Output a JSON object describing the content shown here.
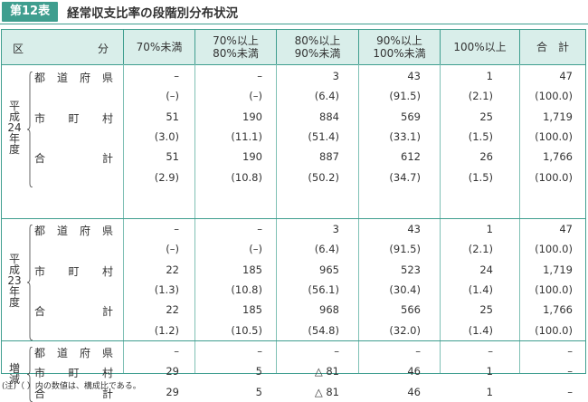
{
  "header": {
    "badge": "第12表",
    "title": "経常収支比率の段階別分布状況"
  },
  "columns": {
    "kubun_left": "区",
    "kubun_right": "分",
    "heads": [
      [
        "70%未満"
      ],
      [
        "70%以上",
        "80%未満"
      ],
      [
        "80%以上",
        "90%未満"
      ],
      [
        "90%以上",
        "100%未満"
      ],
      [
        "100%以上"
      ],
      [
        "合　計"
      ]
    ]
  },
  "groups": [
    {
      "label": [
        "平",
        "成",
        "24",
        "年",
        "度"
      ],
      "rows": [
        {
          "label": [
            "都",
            "道",
            "府",
            "県"
          ],
          "values": [
            "–",
            "–",
            "3",
            "43",
            "1",
            "47"
          ]
        },
        {
          "label": [],
          "values": [
            "(–)",
            "(–)",
            "(6.4)",
            "(91.5)",
            "(2.1)",
            "(100.0)"
          ]
        },
        {
          "label": [
            "市",
            "町",
            "村"
          ],
          "values": [
            "51",
            "190",
            "884",
            "569",
            "25",
            "1,719"
          ]
        },
        {
          "label": [],
          "values": [
            "(3.0)",
            "(11.1)",
            "(51.4)",
            "(33.1)",
            "(1.5)",
            "(100.0)"
          ]
        },
        {
          "label": [
            "合",
            "計"
          ],
          "values": [
            "51",
            "190",
            "887",
            "612",
            "26",
            "1,766"
          ]
        },
        {
          "label": [],
          "values": [
            "(2.9)",
            "(10.8)",
            "(50.2)",
            "(34.7)",
            "(1.5)",
            "(100.0)"
          ]
        }
      ]
    },
    {
      "label": [
        "平",
        "成",
        "23",
        "年",
        "度"
      ],
      "rows": [
        {
          "label": [
            "都",
            "道",
            "府",
            "県"
          ],
          "values": [
            "–",
            "–",
            "3",
            "43",
            "1",
            "47"
          ]
        },
        {
          "label": [],
          "values": [
            "(–)",
            "(–)",
            "(6.4)",
            "(91.5)",
            "(2.1)",
            "(100.0)"
          ]
        },
        {
          "label": [
            "市",
            "町",
            "村"
          ],
          "values": [
            "22",
            "185",
            "965",
            "523",
            "24",
            "1,719"
          ]
        },
        {
          "label": [],
          "values": [
            "(1.3)",
            "(10.8)",
            "(56.1)",
            "(30.4)",
            "(1.4)",
            "(100.0)"
          ]
        },
        {
          "label": [
            "合",
            "計"
          ],
          "values": [
            "22",
            "185",
            "968",
            "566",
            "25",
            "1,766"
          ]
        },
        {
          "label": [],
          "values": [
            "(1.2)",
            "(10.5)",
            "(54.8)",
            "(32.0)",
            "(1.4)",
            "(100.0)"
          ]
        }
      ]
    },
    {
      "label": [
        "増",
        "減"
      ],
      "rows": [
        {
          "label": [
            "都",
            "道",
            "府",
            "県"
          ],
          "values": [
            "–",
            "–",
            "–",
            "–",
            "–",
            "–"
          ]
        },
        {
          "label": [
            "市",
            "町",
            "村"
          ],
          "values": [
            "29",
            "5",
            "△ 81",
            "46",
            "1",
            "–"
          ]
        },
        {
          "label": [
            "合",
            "計"
          ],
          "values": [
            "29",
            "5",
            "△ 81",
            "46",
            "1",
            "–"
          ]
        }
      ]
    }
  ],
  "note": "(注)（ ）内の数値は、構成比である。"
}
